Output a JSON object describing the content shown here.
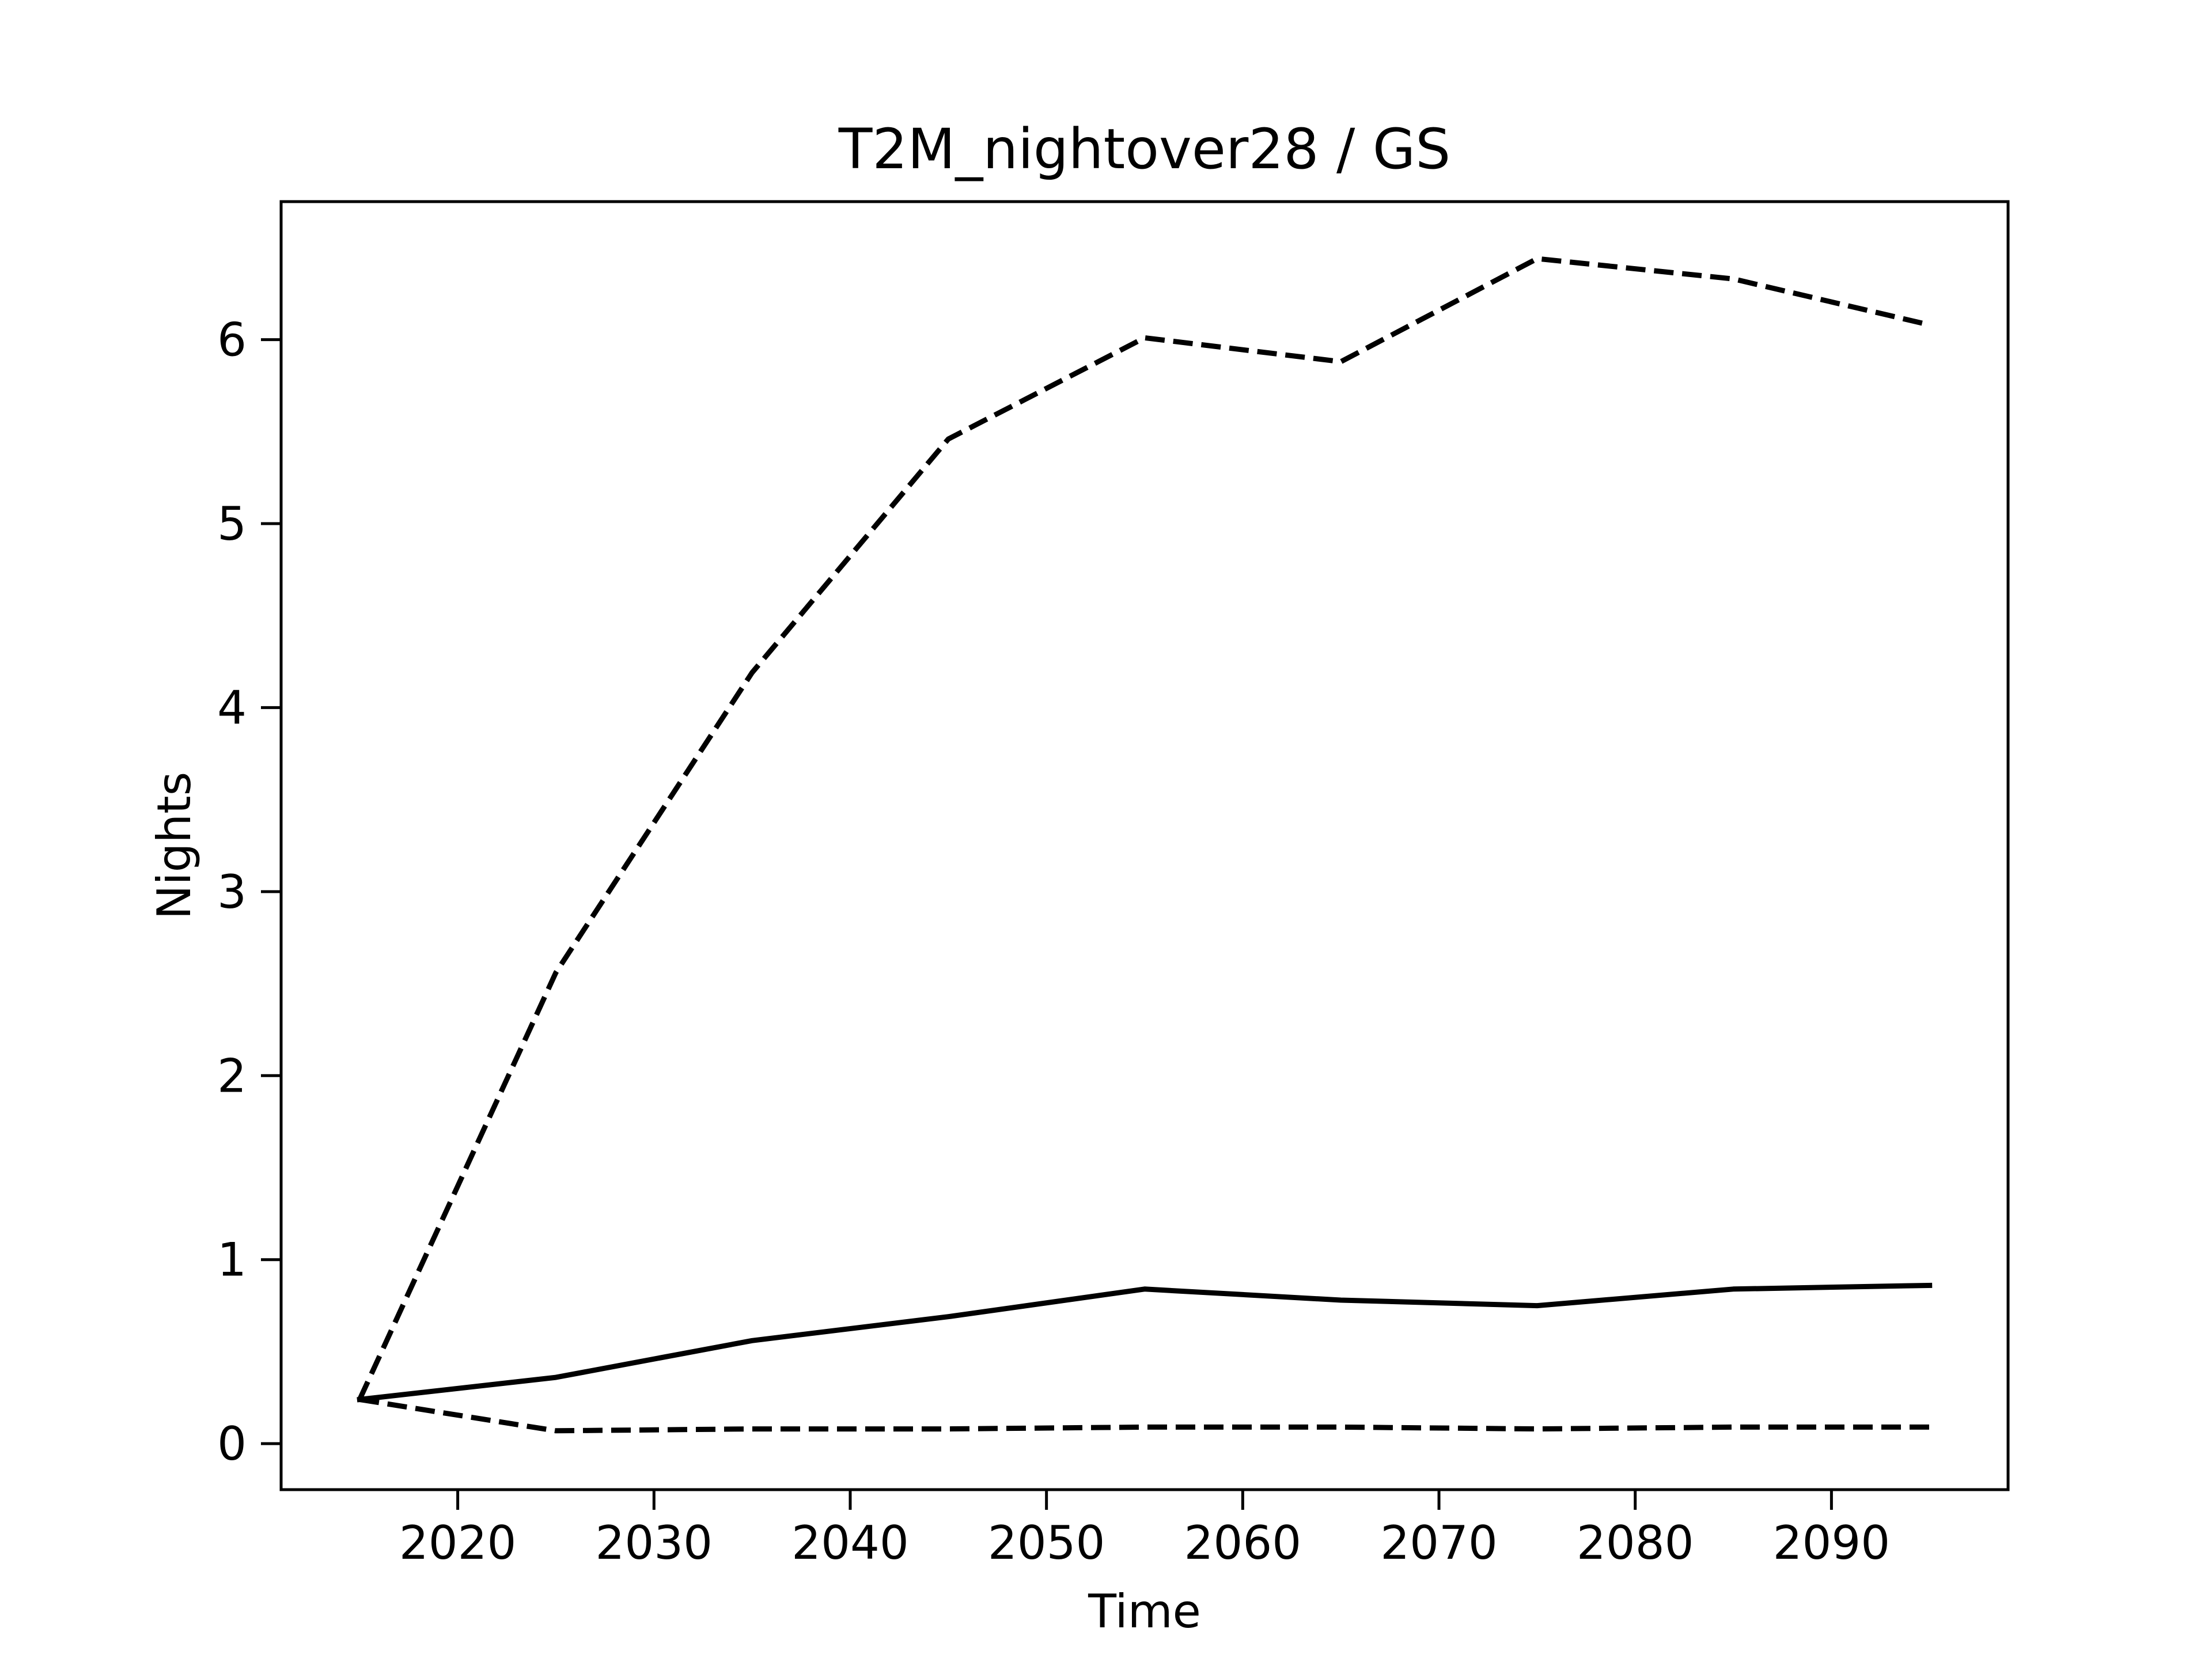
{
  "chart_data": {
    "type": "line",
    "title": "T2M_nightover28 / GS",
    "xlabel": "Time",
    "ylabel": "Nights",
    "xlim": [
      2011,
      2099
    ],
    "ylim": [
      -0.25,
      6.75
    ],
    "xticks": [
      2020,
      2030,
      2040,
      2050,
      2060,
      2070,
      2080,
      2090
    ],
    "yticks": [
      0,
      1,
      2,
      3,
      4,
      5,
      6
    ],
    "grid": false,
    "legend": "none",
    "x": [
      2015,
      2025,
      2035,
      2045,
      2055,
      2065,
      2075,
      2085,
      2095
    ],
    "series": [
      {
        "style": "solid",
        "color": "#000000",
        "values": [
          0.24,
          0.36,
          0.56,
          0.69,
          0.84,
          0.78,
          0.75,
          0.84,
          0.86
        ]
      },
      {
        "style": "dashed",
        "color": "#000000",
        "values": [
          0.24,
          2.56,
          4.19,
          5.46,
          6.01,
          5.88,
          6.44,
          6.33,
          6.08
        ]
      },
      {
        "style": "dashed",
        "color": "#000000",
        "values": [
          0.24,
          0.07,
          0.08,
          0.08,
          0.09,
          0.09,
          0.08,
          0.09,
          0.09
        ]
      }
    ]
  }
}
